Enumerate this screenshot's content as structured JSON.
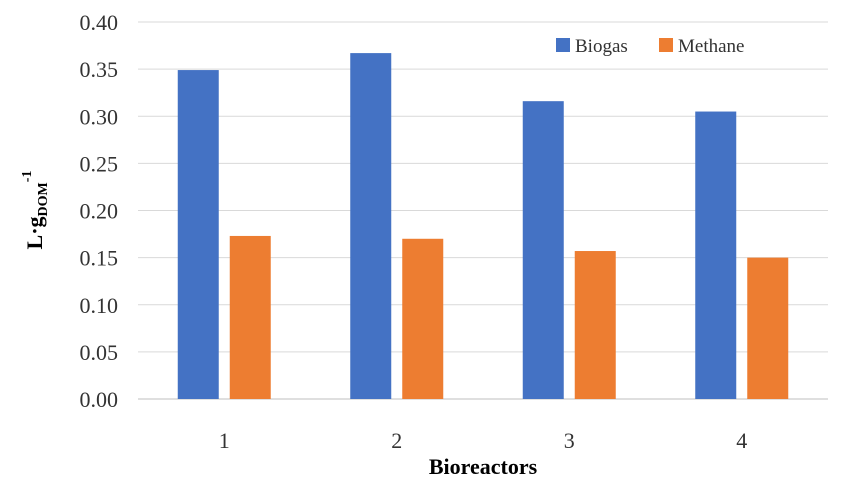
{
  "chart_data": {
    "type": "bar",
    "categories": [
      "1",
      "2",
      "3",
      "4"
    ],
    "series": [
      {
        "name": "Biogas",
        "values": [
          0.349,
          0.367,
          0.316,
          0.305
        ],
        "color": "#4472C4"
      },
      {
        "name": "Methane",
        "values": [
          0.173,
          0.17,
          0.157,
          0.15
        ],
        "color": "#ED7D31"
      }
    ],
    "xlabel": "Bioreactors",
    "ylabel": {
      "main": "L·g",
      "subscript": "DOM",
      "superscript": "-1"
    },
    "ylim": [
      0,
      0.4
    ],
    "yticks": [
      "0.00",
      "0.05",
      "0.10",
      "0.15",
      "0.20",
      "0.25",
      "0.30",
      "0.35",
      "0.40"
    ],
    "grid": "horizontal",
    "legend_position": "top-right"
  }
}
